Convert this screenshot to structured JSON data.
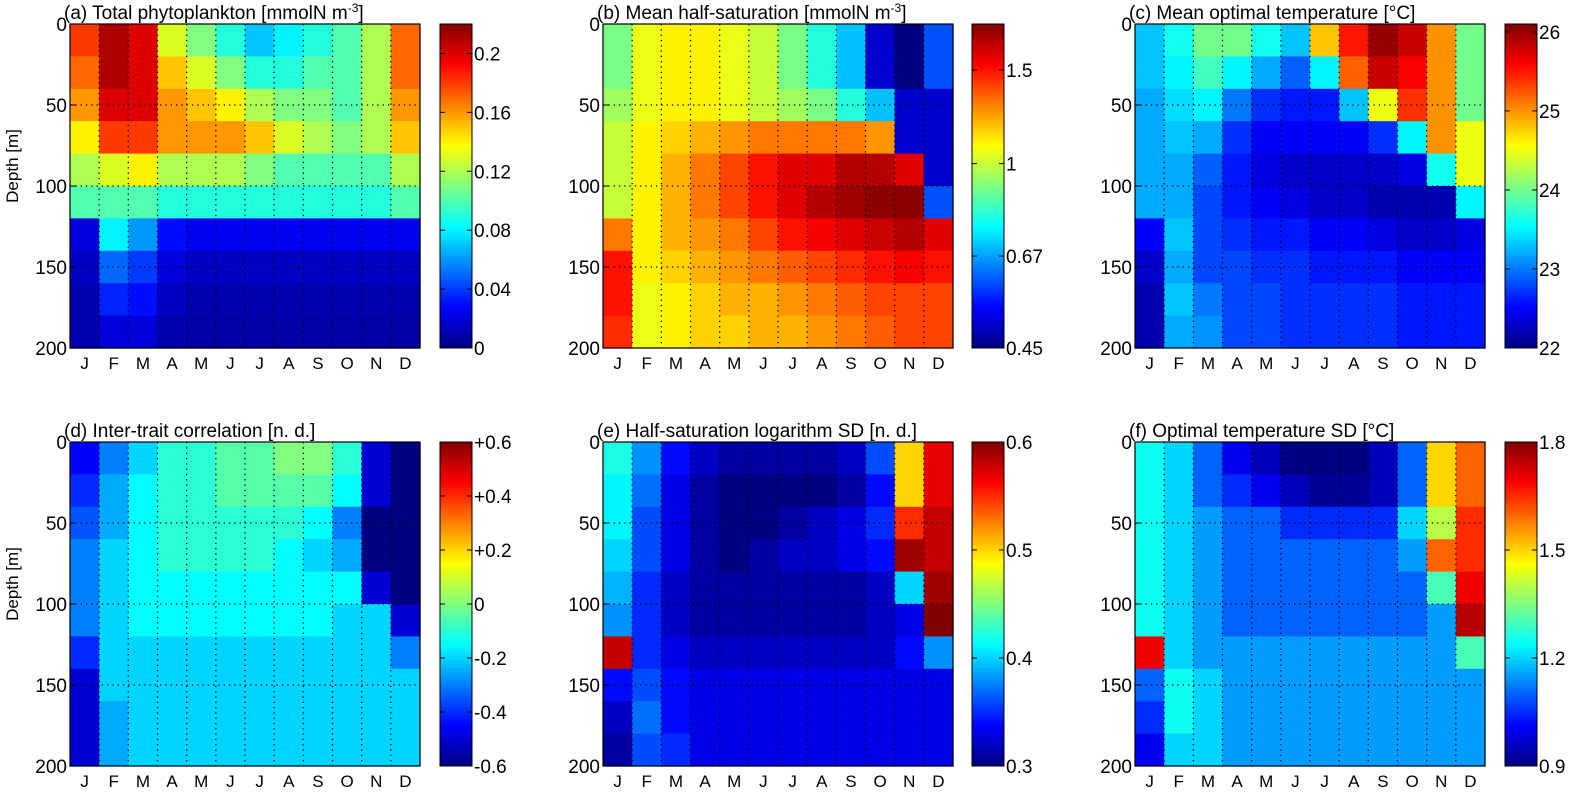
{
  "chart_data": [
    {
      "type": "heatmap",
      "title": "(a) Total phytoplankton [mmolN m",
      "title_sup": "-3",
      "title_end": "]",
      "ylabel": "Depth [m]",
      "xlabel": "",
      "x_categories": [
        "J",
        "F",
        "M",
        "A",
        "M",
        "J",
        "J",
        "A",
        "S",
        "O",
        "N",
        "D"
      ],
      "y_depth_bins": [
        [
          0,
          20
        ],
        [
          20,
          40
        ],
        [
          40,
          60
        ],
        [
          60,
          80
        ],
        [
          80,
          100
        ],
        [
          100,
          120
        ],
        [
          120,
          140
        ],
        [
          140,
          160
        ],
        [
          160,
          180
        ],
        [
          180,
          200
        ]
      ],
      "yticks": [
        0,
        50,
        100,
        150,
        200
      ],
      "ylim": [
        0,
        200
      ],
      "colorbar": {
        "range": [
          0,
          0.22
        ],
        "scale": "linear",
        "ticks": [
          0,
          0.04,
          0.08,
          0.12,
          0.16,
          0.2
        ],
        "tick_labels": [
          "0",
          "0.04",
          "0.08",
          "0.12",
          "0.16",
          "0.2"
        ]
      },
      "values": [
        [
          0.18,
          0.21,
          0.2,
          0.13,
          0.11,
          0.09,
          0.07,
          0.08,
          0.09,
          0.1,
          0.12,
          0.17
        ],
        [
          0.17,
          0.21,
          0.2,
          0.15,
          0.13,
          0.11,
          0.09,
          0.09,
          0.1,
          0.1,
          0.12,
          0.17
        ],
        [
          0.16,
          0.2,
          0.2,
          0.16,
          0.15,
          0.14,
          0.12,
          0.11,
          0.11,
          0.1,
          0.12,
          0.16
        ],
        [
          0.14,
          0.18,
          0.18,
          0.16,
          0.16,
          0.16,
          0.15,
          0.13,
          0.12,
          0.11,
          0.12,
          0.15
        ],
        [
          0.12,
          0.13,
          0.14,
          0.12,
          0.12,
          0.12,
          0.11,
          0.1,
          0.1,
          0.1,
          0.1,
          0.12
        ],
        [
          0.1,
          0.1,
          0.1,
          0.09,
          0.09,
          0.09,
          0.09,
          0.09,
          0.09,
          0.09,
          0.09,
          0.1
        ],
        [
          0.02,
          0.08,
          0.06,
          0.03,
          0.025,
          0.025,
          0.025,
          0.025,
          0.025,
          0.025,
          0.025,
          0.025
        ],
        [
          0.015,
          0.05,
          0.04,
          0.02,
          0.015,
          0.015,
          0.015,
          0.015,
          0.015,
          0.015,
          0.015,
          0.015
        ],
        [
          0.01,
          0.035,
          0.03,
          0.015,
          0.01,
          0.01,
          0.01,
          0.01,
          0.01,
          0.01,
          0.01,
          0.01
        ],
        [
          0.01,
          0.02,
          0.02,
          0.01,
          0.008,
          0.008,
          0.008,
          0.008,
          0.008,
          0.008,
          0.008,
          0.008
        ]
      ]
    },
    {
      "type": "heatmap",
      "title": "(b) Mean half-saturation [mmolN m",
      "title_sup": "-3",
      "title_end": "]",
      "ylabel": "",
      "x_categories": [
        "J",
        "F",
        "M",
        "A",
        "M",
        "J",
        "J",
        "A",
        "S",
        "O",
        "N",
        "D"
      ],
      "yticks": [
        0,
        50,
        100,
        150,
        200
      ],
      "ylim": [
        0,
        200
      ],
      "colorbar": {
        "range": [
          0.45,
          1.83
        ],
        "scale": "log",
        "ticks": [
          0.45,
          0.67,
          1,
          1.5
        ],
        "tick_labels": [
          "0.45",
          "0.67",
          "1",
          "1.5"
        ]
      },
      "values": [
        [
          0.9,
          1.05,
          1.1,
          1.1,
          1.05,
          1.0,
          0.9,
          0.8,
          0.7,
          0.5,
          0.45,
          0.6
        ],
        [
          0.9,
          1.05,
          1.1,
          1.1,
          1.05,
          1.0,
          0.9,
          0.8,
          0.7,
          0.5,
          0.45,
          0.6
        ],
        [
          0.95,
          1.05,
          1.1,
          1.1,
          1.05,
          1.0,
          0.95,
          0.9,
          0.8,
          0.7,
          0.5,
          0.5
        ],
        [
          1.0,
          1.1,
          1.15,
          1.2,
          1.25,
          1.3,
          1.3,
          1.3,
          1.3,
          1.25,
          0.5,
          0.5
        ],
        [
          1.0,
          1.1,
          1.2,
          1.3,
          1.4,
          1.5,
          1.6,
          1.6,
          1.7,
          1.7,
          1.6,
          0.5
        ],
        [
          1.0,
          1.1,
          1.2,
          1.3,
          1.4,
          1.5,
          1.6,
          1.7,
          1.75,
          1.8,
          1.8,
          0.6
        ],
        [
          1.3,
          1.1,
          1.2,
          1.25,
          1.3,
          1.4,
          1.5,
          1.55,
          1.6,
          1.65,
          1.7,
          1.6
        ],
        [
          1.5,
          1.1,
          1.15,
          1.2,
          1.25,
          1.3,
          1.35,
          1.4,
          1.45,
          1.5,
          1.55,
          1.5
        ],
        [
          1.5,
          1.05,
          1.1,
          1.15,
          1.2,
          1.2,
          1.25,
          1.3,
          1.35,
          1.4,
          1.4,
          1.4
        ],
        [
          1.45,
          1.05,
          1.1,
          1.15,
          1.15,
          1.2,
          1.2,
          1.25,
          1.3,
          1.35,
          1.4,
          1.4
        ]
      ]
    },
    {
      "type": "heatmap",
      "title": "(c) Mean optimal temperature [°C]",
      "title_sup": "",
      "title_end": "",
      "ylabel": "",
      "x_categories": [
        "J",
        "F",
        "M",
        "A",
        "M",
        "J",
        "J",
        "A",
        "S",
        "O",
        "N",
        "D"
      ],
      "yticks": [
        0,
        50,
        100,
        150,
        200
      ],
      "ylim": [
        0,
        200
      ],
      "colorbar": {
        "range": [
          22,
          26.1
        ],
        "scale": "linear",
        "ticks": [
          22,
          23,
          24,
          25,
          26
        ],
        "tick_labels": [
          "22",
          "23",
          "24",
          "25",
          "26"
        ]
      },
      "values": [
        [
          23.3,
          23.6,
          24.0,
          24.0,
          23.6,
          23.3,
          24.8,
          25.5,
          26.0,
          25.8,
          25.0,
          24.0
        ],
        [
          23.3,
          23.5,
          23.8,
          23.5,
          23.2,
          22.9,
          23.5,
          25.2,
          25.8,
          25.6,
          25.0,
          24.0
        ],
        [
          23.2,
          23.4,
          23.5,
          23.0,
          22.7,
          22.6,
          22.6,
          23.3,
          24.5,
          25.4,
          25.0,
          24.0
        ],
        [
          23.2,
          23.3,
          23.2,
          22.7,
          22.5,
          22.5,
          22.5,
          22.5,
          22.7,
          23.5,
          25.0,
          24.5
        ],
        [
          23.2,
          23.2,
          22.9,
          22.6,
          22.4,
          22.3,
          22.3,
          22.3,
          22.3,
          22.4,
          23.6,
          24.5
        ],
        [
          23.2,
          23.2,
          22.8,
          22.6,
          22.5,
          22.4,
          22.3,
          22.3,
          22.2,
          22.2,
          22.2,
          23.5
        ],
        [
          22.5,
          23.3,
          22.8,
          22.7,
          22.6,
          22.6,
          22.5,
          22.5,
          22.4,
          22.3,
          22.3,
          22.4
        ],
        [
          22.3,
          23.2,
          22.8,
          22.8,
          22.7,
          22.7,
          22.6,
          22.6,
          22.6,
          22.5,
          22.5,
          22.5
        ],
        [
          22.2,
          23.3,
          23.0,
          22.8,
          22.8,
          22.7,
          22.7,
          22.7,
          22.7,
          22.6,
          22.6,
          22.6
        ],
        [
          22.2,
          23.2,
          23.1,
          22.8,
          22.8,
          22.7,
          22.7,
          22.7,
          22.7,
          22.6,
          22.6,
          22.6
        ]
      ]
    },
    {
      "type": "heatmap",
      "title": "(d) Inter-trait correlation [n. d.]",
      "title_sup": "",
      "title_end": "",
      "ylabel": "Depth [m]",
      "x_categories": [
        "J",
        "F",
        "M",
        "A",
        "M",
        "J",
        "J",
        "A",
        "S",
        "O",
        "N",
        "D"
      ],
      "yticks": [
        0,
        50,
        100,
        150,
        200
      ],
      "ylim": [
        0,
        200
      ],
      "colorbar": {
        "range": [
          -0.6,
          0.6
        ],
        "scale": "linear",
        "ticks": [
          -0.6,
          -0.4,
          -0.2,
          0,
          0.2,
          0.4,
          0.6
        ],
        "tick_labels": [
          "-0.6",
          "-0.4",
          "-0.2",
          "0",
          "+0.2",
          "+0.4",
          "+0.6"
        ]
      },
      "values": [
        [
          -0.45,
          -0.3,
          -0.2,
          -0.1,
          -0.1,
          -0.05,
          -0.05,
          0.0,
          0.0,
          -0.1,
          -0.5,
          -0.6
        ],
        [
          -0.4,
          -0.25,
          -0.15,
          -0.1,
          -0.1,
          -0.05,
          -0.05,
          -0.05,
          -0.05,
          -0.15,
          -0.5,
          -0.6
        ],
        [
          -0.35,
          -0.25,
          -0.15,
          -0.1,
          -0.1,
          -0.1,
          -0.1,
          -0.1,
          -0.15,
          -0.3,
          -0.6,
          -0.6
        ],
        [
          -0.3,
          -0.2,
          -0.15,
          -0.1,
          -0.1,
          -0.1,
          -0.1,
          -0.15,
          -0.2,
          -0.25,
          -0.6,
          -0.6
        ],
        [
          -0.3,
          -0.2,
          -0.15,
          -0.15,
          -0.15,
          -0.15,
          -0.15,
          -0.15,
          -0.15,
          -0.15,
          -0.5,
          -0.6
        ],
        [
          -0.3,
          -0.2,
          -0.15,
          -0.15,
          -0.15,
          -0.15,
          -0.15,
          -0.15,
          -0.15,
          -0.2,
          -0.2,
          -0.5
        ],
        [
          -0.4,
          -0.2,
          -0.2,
          -0.2,
          -0.2,
          -0.2,
          -0.2,
          -0.2,
          -0.2,
          -0.2,
          -0.2,
          -0.3
        ],
        [
          -0.5,
          -0.2,
          -0.2,
          -0.2,
          -0.2,
          -0.2,
          -0.2,
          -0.2,
          -0.2,
          -0.2,
          -0.2,
          -0.2
        ],
        [
          -0.5,
          -0.25,
          -0.2,
          -0.2,
          -0.2,
          -0.2,
          -0.2,
          -0.2,
          -0.2,
          -0.2,
          -0.2,
          -0.2
        ],
        [
          -0.5,
          -0.25,
          -0.2,
          -0.2,
          -0.2,
          -0.2,
          -0.2,
          -0.2,
          -0.2,
          -0.2,
          -0.2,
          -0.2
        ]
      ]
    },
    {
      "type": "heatmap",
      "title": "(e) Half-saturation logarithm SD  [n. d.]",
      "title_sup": "",
      "title_end": "",
      "ylabel": "",
      "x_categories": [
        "J",
        "F",
        "M",
        "A",
        "M",
        "J",
        "J",
        "A",
        "S",
        "O",
        "N",
        "D"
      ],
      "yticks": [
        0,
        50,
        100,
        150,
        200
      ],
      "ylim": [
        0,
        200
      ],
      "colorbar": {
        "range": [
          0.3,
          0.6
        ],
        "scale": "linear",
        "ticks": [
          0.3,
          0.4,
          0.5,
          0.6
        ],
        "tick_labels": [
          "0.3",
          "0.4",
          "0.5",
          "0.6"
        ]
      },
      "values": [
        [
          0.42,
          0.38,
          0.34,
          0.32,
          0.31,
          0.31,
          0.31,
          0.31,
          0.32,
          0.36,
          0.5,
          0.57
        ],
        [
          0.41,
          0.37,
          0.33,
          0.31,
          0.3,
          0.3,
          0.3,
          0.3,
          0.31,
          0.34,
          0.5,
          0.57
        ],
        [
          0.41,
          0.36,
          0.33,
          0.31,
          0.3,
          0.3,
          0.31,
          0.32,
          0.33,
          0.35,
          0.55,
          0.58
        ],
        [
          0.4,
          0.36,
          0.33,
          0.31,
          0.3,
          0.31,
          0.32,
          0.32,
          0.33,
          0.34,
          0.59,
          0.58
        ],
        [
          0.39,
          0.35,
          0.32,
          0.31,
          0.31,
          0.31,
          0.31,
          0.31,
          0.31,
          0.32,
          0.4,
          0.59
        ],
        [
          0.38,
          0.35,
          0.32,
          0.31,
          0.31,
          0.31,
          0.31,
          0.31,
          0.31,
          0.32,
          0.33,
          0.6
        ],
        [
          0.58,
          0.35,
          0.33,
          0.32,
          0.32,
          0.32,
          0.32,
          0.32,
          0.32,
          0.32,
          0.34,
          0.38
        ],
        [
          0.34,
          0.36,
          0.34,
          0.33,
          0.33,
          0.33,
          0.33,
          0.33,
          0.33,
          0.33,
          0.33,
          0.33
        ],
        [
          0.32,
          0.37,
          0.34,
          0.33,
          0.33,
          0.33,
          0.33,
          0.33,
          0.33,
          0.33,
          0.33,
          0.33
        ],
        [
          0.31,
          0.36,
          0.35,
          0.33,
          0.33,
          0.33,
          0.33,
          0.33,
          0.33,
          0.33,
          0.33,
          0.33
        ]
      ]
    },
    {
      "type": "heatmap",
      "title": "(f) Optimal temperature SD  [°C]",
      "title_sup": "",
      "title_end": "",
      "ylabel": "",
      "x_categories": [
        "J",
        "F",
        "M",
        "A",
        "M",
        "J",
        "J",
        "A",
        "S",
        "O",
        "N",
        "D"
      ],
      "yticks": [
        0,
        50,
        100,
        150,
        200
      ],
      "ylim": [
        0,
        200
      ],
      "colorbar": {
        "range": [
          0.9,
          1.8
        ],
        "scale": "linear",
        "ticks": [
          0.9,
          1.2,
          1.5,
          1.8
        ],
        "tick_labels": [
          "0.9",
          "1.2",
          "1.5",
          "1.8"
        ]
      },
      "values": [
        [
          1.25,
          1.2,
          1.1,
          1.0,
          0.95,
          0.9,
          0.9,
          0.9,
          0.95,
          1.1,
          1.5,
          1.6
        ],
        [
          1.25,
          1.2,
          1.1,
          1.05,
          1.0,
          0.95,
          0.92,
          0.92,
          0.95,
          1.1,
          1.5,
          1.6
        ],
        [
          1.25,
          1.2,
          1.15,
          1.1,
          1.1,
          1.05,
          1.05,
          1.05,
          1.05,
          1.2,
          1.4,
          1.65
        ],
        [
          1.25,
          1.2,
          1.15,
          1.1,
          1.1,
          1.1,
          1.1,
          1.1,
          1.1,
          1.15,
          1.6,
          1.65
        ],
        [
          1.25,
          1.2,
          1.15,
          1.1,
          1.1,
          1.1,
          1.1,
          1.1,
          1.1,
          1.1,
          1.3,
          1.7
        ],
        [
          1.25,
          1.2,
          1.15,
          1.1,
          1.1,
          1.1,
          1.1,
          1.1,
          1.1,
          1.1,
          1.15,
          1.75
        ],
        [
          1.7,
          1.2,
          1.15,
          1.15,
          1.15,
          1.15,
          1.15,
          1.15,
          1.15,
          1.15,
          1.15,
          1.3
        ],
        [
          1.1,
          1.25,
          1.2,
          1.15,
          1.15,
          1.15,
          1.15,
          1.15,
          1.15,
          1.15,
          1.15,
          1.15
        ],
        [
          1.05,
          1.25,
          1.2,
          1.15,
          1.15,
          1.15,
          1.15,
          1.15,
          1.15,
          1.15,
          1.15,
          1.15
        ],
        [
          1.0,
          1.2,
          1.2,
          1.15,
          1.15,
          1.15,
          1.15,
          1.15,
          1.15,
          1.15,
          1.15,
          1.15
        ]
      ]
    }
  ]
}
